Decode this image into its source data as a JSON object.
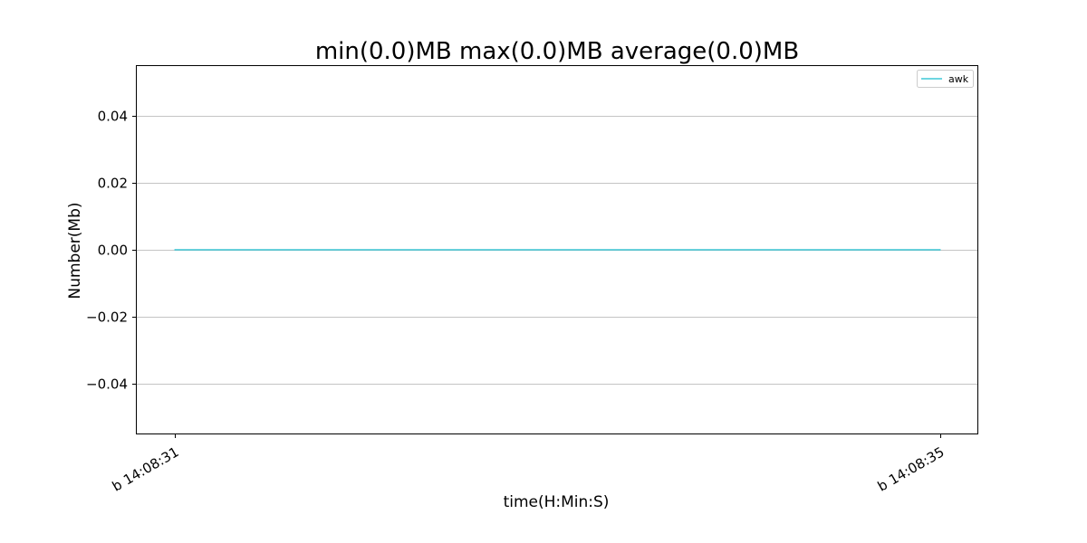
{
  "chart_data": {
    "type": "line",
    "title": "min(0.0)MB max(0.0)MB average(0.0)MB",
    "xlabel": "time(H:Min:S)",
    "ylabel": "Number(Mb)",
    "x": [
      "b 14:08:31",
      "b 14:08:35"
    ],
    "xticks": [
      "b 14:08:31",
      "b 14:08:35"
    ],
    "ylim": [
      -0.055,
      0.055
    ],
    "yticks": [
      0.04,
      0.02,
      0.0,
      -0.02,
      -0.04
    ],
    "ytick_labels": [
      "0.04",
      "0.02",
      "0.00",
      "−0.02",
      "−0.04"
    ],
    "grid": "y-major",
    "legend_position": "upper-right",
    "series": [
      {
        "name": "awk",
        "color": "#17becf",
        "values": [
          0.0,
          0.0
        ]
      }
    ]
  }
}
